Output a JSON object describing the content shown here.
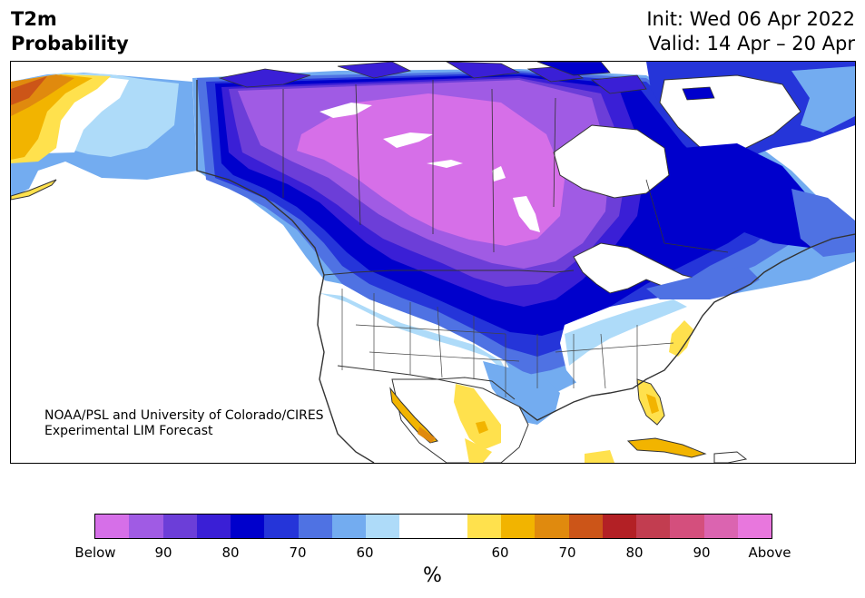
{
  "title": {
    "left_line1": "T2m",
    "left_line2": "Probability",
    "right_line1": "Init: Wed 06 Apr 2022",
    "right_line2": "Valid: 14 Apr – 20 Apr"
  },
  "credit": {
    "line1": "NOAA/PSL and University of Colorado/CIRES",
    "line2": "Experimental LIM Forecast"
  },
  "colorbar": {
    "unit": "%",
    "colors": [
      "#d66fe8",
      "#a05be4",
      "#6c3ed8",
      "#3a1fd6",
      "#0000cc",
      "#2535d9",
      "#4f72e3",
      "#73acf0",
      "#aedbf9",
      "#ffffff",
      "#ffffff",
      "#ffe14d",
      "#f2b400",
      "#e08a0e",
      "#cc5518",
      "#b32025",
      "#c23d50",
      "#d44f7d",
      "#db64b0",
      "#e877dd"
    ],
    "ticks": [
      "Below",
      "90",
      "80",
      "70",
      "60",
      "60",
      "70",
      "80",
      "90",
      "Above"
    ]
  },
  "map": {
    "region": "North America",
    "colors": {
      "below_extreme": "#d66fe8",
      "below_90": "#a05be4",
      "below_80": "#6c3ed8",
      "below_75": "#3a1fd6",
      "below_70": "#0000cc",
      "below_65": "#2535d9",
      "below_60": "#4f72e3",
      "below_55": "#73acf0",
      "below_50": "#aedbf9",
      "above_55": "#ffe14d",
      "above_60": "#f2b400",
      "above_65": "#e08a0e",
      "above_70": "#cc5518",
      "above_75": "#b32025"
    }
  }
}
